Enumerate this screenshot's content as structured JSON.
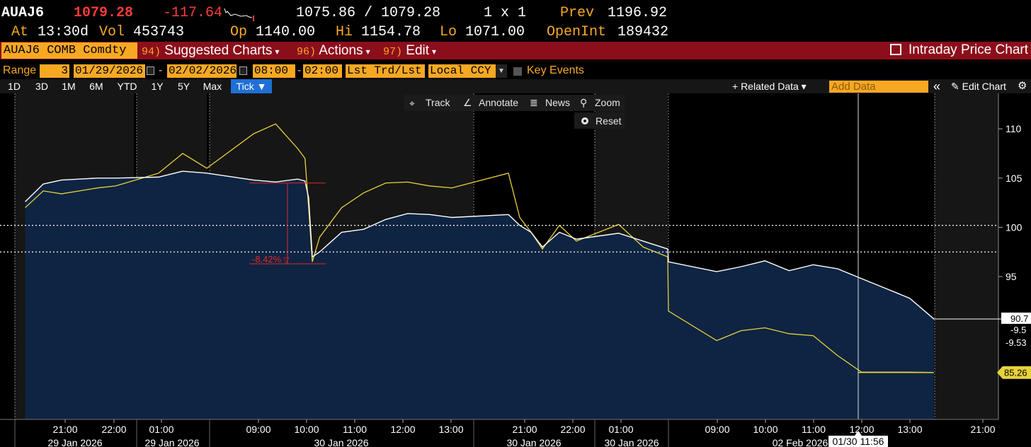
{
  "quote": {
    "ticker": "AUAJ6",
    "last": "1079.28",
    "change": "-117.64",
    "bid_ask": "1075.86 / 1079.28",
    "size": "1 x 1",
    "prev_label": "Prev",
    "prev": "1196.92",
    "at_label": "At",
    "time": "13:30d",
    "vol_label": "Vol",
    "vol": "453743",
    "op_label": "Op",
    "open": "1140.00",
    "hi_label": "Hi",
    "high": "1154.78",
    "lo_label": "Lo",
    "low": "1071.00",
    "oi_label": "OpenInt",
    "open_interest": "189432"
  },
  "titlebar": {
    "security": "AUAJ6 COMB Comdty",
    "menus": [
      {
        "num": "94)",
        "label": "Suggested Charts"
      },
      {
        "num": "96)",
        "label": "Actions"
      },
      {
        "num": "97)",
        "label": "Edit"
      }
    ],
    "title": "Intraday Price Chart"
  },
  "range": {
    "label": "Range",
    "count": "3",
    "start_date": "01/29/2026",
    "end_date": "02/02/2026",
    "start_time": "08:00",
    "end_time": "02:00",
    "price_type": "Lst Trd/Lst P",
    "currency": "Local CCY",
    "key_events": "Key Events"
  },
  "tabs": [
    "1D",
    "3D",
    "1M",
    "6M",
    "YTD",
    "1Y",
    "5Y",
    "Max",
    "Tick ▼"
  ],
  "toolbar": {
    "related": "+ Related Data ▾",
    "add_placeholder": "Add Data",
    "collapse": "«",
    "edit_chart": "Edit Chart",
    "track": "Track",
    "annotate": "Annotate",
    "news": "News",
    "zoom": "Zoom",
    "reset": "Reset"
  },
  "annotation": {
    "pct_change": "-8.42%"
  },
  "cursor_label": "01/30 11:56",
  "colors": {
    "accent_orange": "#f7a823",
    "title_red": "#8c0e1b",
    "area_fill": "#0e2442",
    "primary_line": "#ffffff",
    "secondary_line": "#e8d23a",
    "annotation_red": "#e0262a"
  },
  "chart_data": {
    "type": "area",
    "ylim": [
      80.5,
      113.6
    ],
    "yticks": [
      95,
      100,
      105,
      110
    ],
    "y_labels": {
      "primary_last": "90.7",
      "change_1": "-9.5",
      "change_2": "-9.53",
      "secondary_last": "85.26"
    },
    "dotted_levels": [
      100.2,
      97.5
    ],
    "x_labels": [
      {
        "t": "21:00",
        "d": ""
      },
      {
        "t": "22:00",
        "d": ""
      },
      {
        "t": "01:00",
        "d": ""
      },
      {
        "t": "09:00",
        "d": ""
      },
      {
        "t": "10:00",
        "d": ""
      },
      {
        "t": "11:00",
        "d": ""
      },
      {
        "t": "12:00",
        "d": ""
      },
      {
        "t": "13:00",
        "d": ""
      },
      {
        "t": "21:00",
        "d": ""
      },
      {
        "t": "22:00",
        "d": ""
      },
      {
        "t": "01:00",
        "d": ""
      },
      {
        "t": "09:00",
        "d": ""
      },
      {
        "t": "10:00",
        "d": ""
      },
      {
        "t": "11:00",
        "d": ""
      },
      {
        "t": "12:00",
        "d": ""
      },
      {
        "t": "13:00",
        "d": ""
      },
      {
        "t": "21:00",
        "d": ""
      }
    ],
    "date_labels": [
      "29 Jan 2026",
      "29 Jan 2026",
      "30 Jan 2026",
      "30 Jan 2026",
      "30 Jan 2026",
      "02 Feb 2026"
    ],
    "series": [
      {
        "x": [
          "29 Jan 20:30",
          "29 Jan 21:00",
          "29 Jan 21:30",
          "29 Jan 22:00",
          "29 Jan 22:30",
          "29 Jan 23:00",
          "30 Jan 01:00",
          "30 Jan 01:30",
          "30 Jan 02:00",
          "30 Jan 09:00",
          "30 Jan 09:30",
          "30 Jan 10:00",
          "30 Jan 10:10",
          "30 Jan 10:15",
          "30 Jan 10:20",
          "30 Jan 10:30",
          "30 Jan 10:45",
          "30 Jan 11:00",
          "30 Jan 11:30",
          "30 Jan 12:00",
          "30 Jan 12:30",
          "30 Jan 13:00",
          "30 Jan 13:30",
          "30 Jan 21:00",
          "30 Jan 21:20",
          "30 Jan 21:40",
          "30 Jan 22:00",
          "30 Jan 22:30",
          "30 Jan 23:00",
          "31 Jan 01:00",
          "31 Jan 01:30",
          "31 Jan 02:00",
          "02 Feb 08:00",
          "02 Feb 09:00",
          "02 Feb 09:30",
          "02 Feb 10:00",
          "02 Feb 10:30",
          "02 Feb 11:00",
          "02 Feb 11:30",
          "02 Feb 12:00",
          "02 Feb 12:30",
          "02 Feb 13:00",
          "02 Feb 13:30"
        ],
        "values": [
          102.6,
          104.4,
          104.8,
          104.9,
          105.0,
          105.0,
          105.1,
          105.7,
          105.5,
          104.8,
          104.6,
          104.9,
          104.7,
          103.0,
          97.0,
          97.5,
          98.5,
          99.5,
          99.8,
          100.8,
          101.4,
          101.3,
          101.0,
          101.3,
          100.2,
          99.5,
          98.0,
          99.5,
          98.8,
          99.4,
          98.6,
          97.8,
          96.5,
          95.5,
          96.0,
          96.6,
          95.6,
          96.2,
          95.8,
          94.8,
          93.8,
          92.8,
          90.7
        ]
      },
      {
        "x": [
          "29 Jan 20:30",
          "29 Jan 21:00",
          "29 Jan 21:30",
          "29 Jan 22:00",
          "29 Jan 22:30",
          "29 Jan 23:00",
          "30 Jan 01:00",
          "30 Jan 01:30",
          "30 Jan 02:00",
          "30 Jan 09:00",
          "30 Jan 09:30",
          "30 Jan 10:00",
          "30 Jan 10:10",
          "30 Jan 10:15",
          "30 Jan 10:20",
          "30 Jan 10:30",
          "30 Jan 10:45",
          "30 Jan 11:00",
          "30 Jan 11:30",
          "30 Jan 12:00",
          "30 Jan 12:30",
          "30 Jan 13:00",
          "30 Jan 13:30",
          "30 Jan 21:00",
          "30 Jan 21:20",
          "30 Jan 21:40",
          "30 Jan 22:00",
          "30 Jan 22:30",
          "30 Jan 23:00",
          "31 Jan 01:00",
          "31 Jan 01:30",
          "31 Jan 02:00",
          "02 Feb 08:00",
          "02 Feb 09:00",
          "02 Feb 09:30",
          "02 Feb 10:00",
          "02 Feb 10:30",
          "02 Feb 11:00",
          "02 Feb 11:30",
          "02 Feb 12:00",
          "02 Feb 12:30",
          "02 Feb 13:00",
          "02 Feb 13:30"
        ],
        "values": [
          102.0,
          103.7,
          103.4,
          103.7,
          104.0,
          104.2,
          105.5,
          107.5,
          106.0,
          109.5,
          110.5,
          108.0,
          107.0,
          102.0,
          96.5,
          99.0,
          100.5,
          102.0,
          103.5,
          104.5,
          104.6,
          104.2,
          104.0,
          105.5,
          101.0,
          99.5,
          97.8,
          100.2,
          98.6,
          100.3,
          98.0,
          97.0,
          91.5,
          88.5,
          89.5,
          89.8,
          89.2,
          89.0,
          87.0,
          85.3,
          85.3,
          85.3,
          85.26
        ]
      }
    ]
  }
}
